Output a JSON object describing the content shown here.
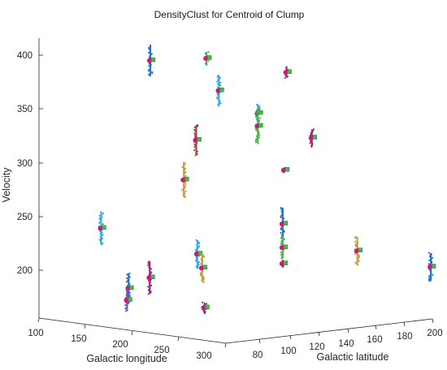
{
  "chart_data": {
    "type": "scatter3d",
    "title": "DensityClust for Centroid of Clump",
    "xlabel": "Galactic longitude",
    "ylabel": "Galactic latitude",
    "zlabel": "Velocity",
    "xlim": [
      100,
      300
    ],
    "ylim": [
      80,
      200
    ],
    "zlim": [
      150,
      400
    ],
    "xticks": [
      "100",
      "150",
      "200",
      "250",
      "300"
    ],
    "yticks": [
      "80",
      "100",
      "120",
      "140",
      "160",
      "180",
      "200"
    ],
    "zticks": [
      "200",
      "250",
      "300",
      "350",
      "400"
    ],
    "grid": false,
    "clusters": [
      {
        "color": "#1f6fd1",
        "centroid": [
          2.18,
          4.69,
          395
        ],
        "marker_color": "#3cc13c",
        "span": [
          -14,
          14
        ]
      },
      {
        "color": "#4bb347",
        "centroid": [
          3.22,
          4.07,
          397
        ],
        "span": [
          -6,
          6
        ]
      },
      {
        "color": "#34a8e6",
        "centroid": [
          3.45,
          5.35,
          367
        ],
        "span": [
          -14,
          14
        ]
      },
      {
        "color": "#8e2a7e",
        "centroid": [
          4.7,
          4.09,
          384
        ],
        "span": [
          -5,
          5
        ]
      },
      {
        "color": "#34a8e6",
        "centroid": [
          4.17,
          4.74,
          346
        ],
        "span": [
          -8,
          8
        ]
      },
      {
        "color": "#4bb347",
        "centroid": [
          4.17,
          4.68,
          334
        ],
        "span": [
          -16,
          16
        ]
      },
      {
        "color": "#a04040",
        "centroid": [
          3.03,
          4.95,
          321
        ],
        "span": [
          -14,
          14
        ]
      },
      {
        "color": "#8e2a7e",
        "centroid": [
          5.17,
          3.39,
          323
        ],
        "span": [
          -8,
          8
        ]
      },
      {
        "color": "#c29b46",
        "centroid": [
          2.8,
          3.63,
          284
        ],
        "span": [
          -16,
          16
        ]
      },
      {
        "color": "#8e2a7e",
        "centroid": [
          4.66,
          3.1,
          293
        ],
        "span": [
          -2,
          2
        ]
      },
      {
        "color": "#34a8e6",
        "centroid": [
          1.27,
          2.92,
          239
        ],
        "span": [
          -15,
          15
        ]
      },
      {
        "color": "#1f6fd1",
        "centroid": [
          4.63,
          2.98,
          243
        ],
        "span": [
          -15,
          15
        ]
      },
      {
        "color": "#34a8e6",
        "centroid": [
          3.05,
          4.13,
          215
        ],
        "span": [
          -13,
          13
        ]
      },
      {
        "color": "#c29b46",
        "centroid": [
          3.14,
          3.08,
          202
        ],
        "span": [
          -13,
          13
        ]
      },
      {
        "color": "#4bb347",
        "centroid": [
          4.63,
          2.98,
          221
        ],
        "span": [
          -10,
          10
        ]
      },
      {
        "color": "#8e2a7e",
        "centroid": [
          4.63,
          2.79,
          206
        ],
        "span": [
          -3,
          3
        ]
      },
      {
        "color": "#c29b46",
        "centroid": [
          6.01,
          2.85,
          218
        ],
        "span": [
          -13,
          13
        ]
      },
      {
        "color": "#1f6fd1",
        "centroid": [
          7.37,
          3.36,
          203
        ],
        "span": [
          -13,
          13
        ]
      },
      {
        "color": "#8e2a7e",
        "centroid": [
          2.17,
          3.69,
          193
        ],
        "span": [
          -15,
          15
        ]
      },
      {
        "color": "#1f6fd1",
        "centroid": [
          1.78,
          3.8,
          183
        ],
        "span": [
          -14,
          14
        ]
      },
      {
        "color": "#7a4fc4",
        "centroid": [
          1.75,
          3.84,
          172
        ],
        "span": [
          -10,
          10
        ]
      },
      {
        "color": "#8e2a7e",
        "centroid": [
          3.18,
          4.75,
          165
        ],
        "span": [
          -5,
          5
        ]
      }
    ]
  }
}
